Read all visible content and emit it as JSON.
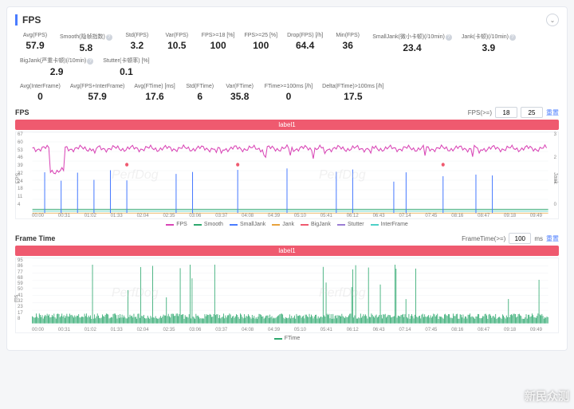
{
  "header": {
    "title": "FPS"
  },
  "metrics_row1": [
    {
      "label": "Avg(FPS)",
      "val": "57.9"
    },
    {
      "label": "Smooth(隐帧指数)",
      "val": "5.8",
      "help": true
    },
    {
      "label": "Std(FPS)",
      "val": "3.2"
    },
    {
      "label": "Var(FPS)",
      "val": "10.5"
    },
    {
      "label": "FPS>=18 [%]",
      "val": "100"
    },
    {
      "label": "FPS>=25 [%]",
      "val": "100"
    },
    {
      "label": "Drop(FPS) [/h]",
      "val": "64.4"
    },
    {
      "label": "Min(FPS)",
      "val": "36"
    },
    {
      "label": "SmallJank(微小卡顿)(/10min)",
      "val": "23.4",
      "help": true
    },
    {
      "label": "Jank(卡顿)(/10min)",
      "val": "3.9",
      "help": true
    },
    {
      "label": "BigJank(严重卡顿)(/10min)",
      "val": "2.9",
      "help": true
    },
    {
      "label": "Stutter(卡顿率) [%]",
      "val": "0.1"
    }
  ],
  "metrics_row2": [
    {
      "label": "Avg(InterFrame)",
      "val": "0"
    },
    {
      "label": "Avg(FPS+InterFrame)",
      "val": "57.9"
    },
    {
      "label": "Avg(FTime) [ms]",
      "val": "17.6"
    },
    {
      "label": "Std(FTime)",
      "val": "6"
    },
    {
      "label": "Var(FTime)",
      "val": "35.8"
    },
    {
      "label": "FTime>=100ms [/h]",
      "val": "0"
    },
    {
      "label": "Delta(FTime)>100ms [/h]",
      "val": "17.5"
    }
  ],
  "fps_chart": {
    "title": "FPS",
    "label": "label1",
    "ctrl_label": "FPS(>=)",
    "v1": "18",
    "v2": "25",
    "reset": "重置",
    "y_left": [
      "67",
      "60",
      "53",
      "46",
      "39",
      "32",
      "24",
      "18",
      "11",
      "4"
    ],
    "y_left_label": "FPS",
    "y_right": [
      "3",
      "2",
      "1",
      "0"
    ],
    "y_right_label": "Jank",
    "x_ticks": [
      "00:00",
      "00:31",
      "01:02",
      "01:33",
      "02:04",
      "02:35",
      "03:06",
      "03:37",
      "04:08",
      "04:39",
      "05:10",
      "05:41",
      "06:12",
      "06:43",
      "07:14",
      "07:45",
      "08:16",
      "08:47",
      "09:18",
      "09:49"
    ],
    "legend": [
      {
        "name": "FPS",
        "color": "#d946b6"
      },
      {
        "name": "Smooth",
        "color": "#2da86e"
      },
      {
        "name": "SmallJank",
        "color": "#4a7cff"
      },
      {
        "name": "Jank",
        "color": "#e8a33d"
      },
      {
        "name": "BigJank",
        "color": "#ef5a6f"
      },
      {
        "name": "Stutter",
        "color": "#9b7dd4"
      },
      {
        "name": "InterFrame",
        "color": "#4dd0c7"
      }
    ],
    "colors": {
      "fps": "#d946b6",
      "smooth": "#2da86e",
      "smalljank": "#4a7cff",
      "jank": "#e8a33d",
      "bigjank": "#ef5a6f",
      "interframe": "#4dd0c7",
      "grid": "#f0f2f5"
    }
  },
  "ft_chart": {
    "title": "Frame Time",
    "label": "label1",
    "ctrl_label": "FrameTime(>=)",
    "v1": "100",
    "unit": "ms",
    "reset": "重置",
    "y_left": [
      "95",
      "86",
      "77",
      "68",
      "59",
      "50",
      "41",
      "32",
      "23",
      "17",
      "8"
    ],
    "y_left_label": "ms",
    "x_ticks": [
      "00:00",
      "00:31",
      "01:02",
      "01:33",
      "02:04",
      "02:35",
      "03:06",
      "03:37",
      "04:08",
      "04:39",
      "05:10",
      "05:41",
      "06:12",
      "06:43",
      "07:14",
      "07:45",
      "08:16",
      "08:47",
      "09:18",
      "09:49"
    ],
    "legend": [
      {
        "name": "FTime",
        "color": "#2da86e"
      }
    ],
    "colors": {
      "ftime": "#2da86e",
      "grid": "#f0f2f5"
    }
  },
  "watermark": "PerfDog",
  "corner_wm": "新民众测"
}
